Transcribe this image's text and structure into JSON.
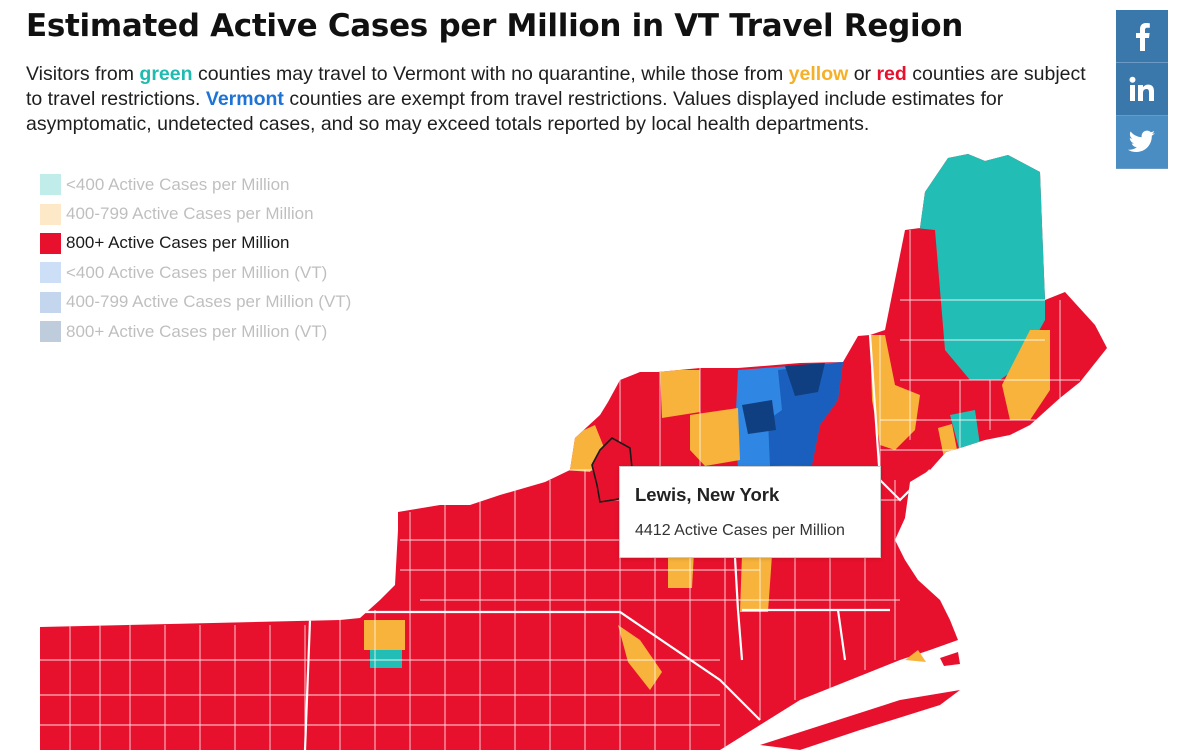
{
  "title": "Estimated Active Cases per Million in VT Travel Region",
  "subtitle": {
    "part1": "Visitors from ",
    "green": "green",
    "part2": " counties may travel to Vermont with no quarantine, while those from ",
    "yellow": "yellow",
    "part3": " or ",
    "red": "red",
    "part4": " counties are subject to travel restrictions. ",
    "vermont": "Vermont",
    "part5": " counties are exempt from travel restrictions. Values displayed include estimates for asymptomatic, undetected cases, and so may exceed totals reported by local health departments."
  },
  "legend": [
    {
      "label": "<400 Active Cases per Million",
      "color": "#22bdb4",
      "active": false
    },
    {
      "label": "400-799 Active Cases per Million",
      "color": "#f8b33c",
      "active": false
    },
    {
      "label": "800+ Active Cases per Million",
      "color": "#e8112d",
      "active": true
    },
    {
      "label": "<400 Active Cases per Million (VT)",
      "color": "#4a90e2",
      "active": false
    },
    {
      "label": "400-799 Active Cases per Million (VT)",
      "color": "#2a6fc4",
      "active": false
    },
    {
      "label": "800+ Active Cases per Million (VT)",
      "color": "#1b4a86",
      "active": false
    }
  ],
  "tooltip": {
    "name": "Lewis, New York",
    "value": "4412 Active Cases per Million"
  },
  "social": [
    {
      "name": "facebook-icon",
      "glyph": "f"
    },
    {
      "name": "linkedin-icon",
      "glyph": "in"
    },
    {
      "name": "twitter-icon",
      "glyph": "twitter"
    }
  ],
  "colors": {
    "red": "#e8112d",
    "yellow": "#f8b33c",
    "green": "#22bdb4",
    "vt_light": "#2f86e3",
    "vt_mid": "#1a5fbd",
    "vt_dark": "#0f3f80",
    "border": "#ffffff"
  }
}
